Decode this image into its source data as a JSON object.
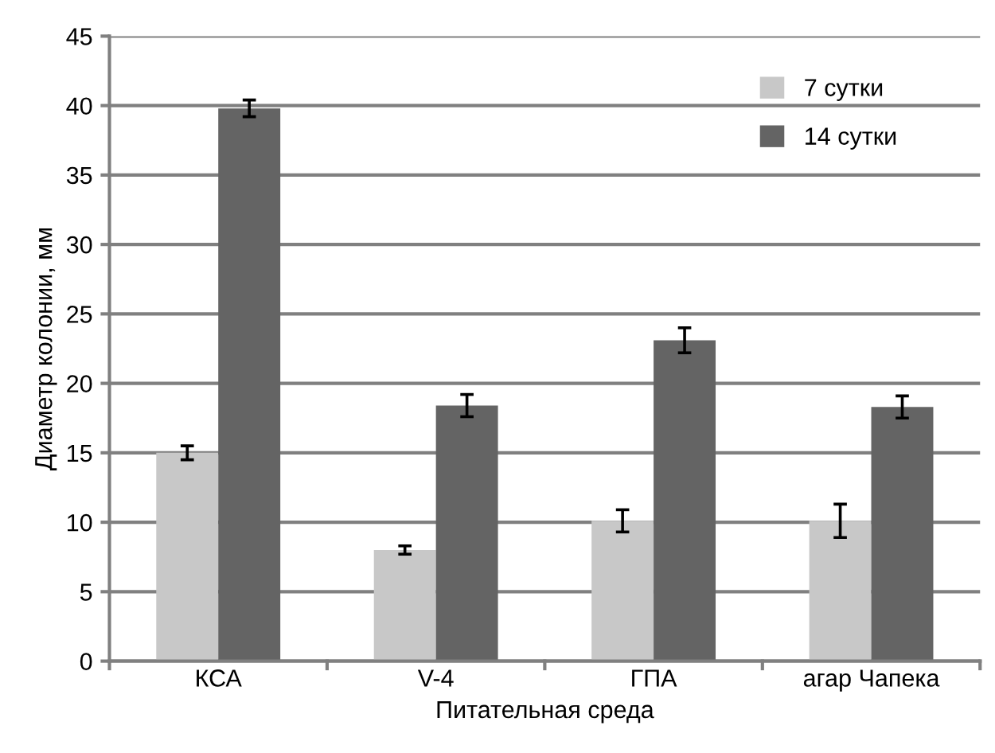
{
  "chart_data": {
    "type": "bar",
    "xlabel": "Питательная среда",
    "ylabel": "Диаметр колонии, мм",
    "categories": [
      "КСА",
      "V-4",
      "ГПА",
      "агар Чапека"
    ],
    "series": [
      {
        "name": "7 сутки",
        "color": "#c8c8c8",
        "values": [
          15.0,
          8.0,
          10.1,
          10.1
        ],
        "errors": [
          0.5,
          0.3,
          0.8,
          1.2
        ]
      },
      {
        "name": "14 сутки",
        "color": "#646464",
        "values": [
          39.8,
          18.4,
          23.1,
          18.3
        ],
        "errors": [
          0.6,
          0.8,
          0.9,
          0.8
        ]
      }
    ],
    "ylim": [
      0,
      45
    ],
    "yticks": [
      0,
      5,
      10,
      15,
      20,
      25,
      30,
      35,
      40,
      45
    ],
    "grid": "y",
    "legend": "top right"
  }
}
